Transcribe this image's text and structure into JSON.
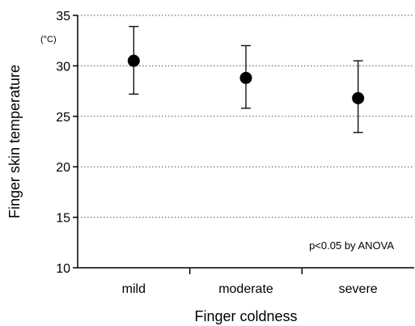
{
  "chart_data": {
    "type": "scatter",
    "title": "",
    "xlabel": "Finger coldness",
    "ylabel": "Finger skin temperature",
    "yunit": "(°C)",
    "categories": [
      "mild",
      "moderate",
      "severe"
    ],
    "values": [
      30.5,
      28.8,
      26.8
    ],
    "error_low": [
      27.2,
      25.8,
      23.4
    ],
    "error_high": [
      33.9,
      32.0,
      30.5
    ],
    "ylim": [
      10,
      35
    ],
    "yticks": [
      10,
      15,
      20,
      25,
      30,
      35
    ],
    "grid": "horizontal dotted",
    "annotation": "p<0.05 by ANOVA"
  }
}
